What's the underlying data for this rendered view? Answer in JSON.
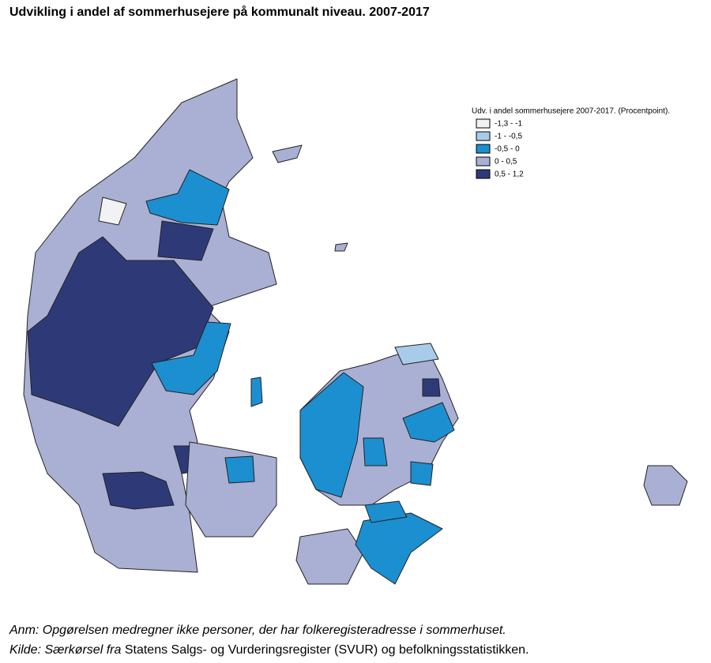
{
  "title": "Udvikling i andel af sommerhusejere på kommunalt niveau. 2007-2017",
  "legend": {
    "title": "Udv. i andel sommerhusejere 2007-2017. (Procentpoint).",
    "items": [
      {
        "label": "-1,3 - -1",
        "color": "#f2f2f2"
      },
      {
        "label": "-1 - -0,5",
        "color": "#a9cbea"
      },
      {
        "label": "-0,5 - 0",
        "color": "#1c8fd0"
      },
      {
        "label": "0 - 0,5",
        "color": "#aab0d3"
      },
      {
        "label": "0,5 - 1,2",
        "color": "#2e3a78"
      }
    ]
  },
  "notes": {
    "anm": "Anm: Opgørelsen medregner ikke personer, der har folkeregisteradresse i sommerhuset.",
    "kilde_italic": "Kilde: Særkørsel fra",
    "kilde_rest": "Statens Salgs- og Vurderingsregister (SVUR) og befolkningsstatistikken."
  }
}
